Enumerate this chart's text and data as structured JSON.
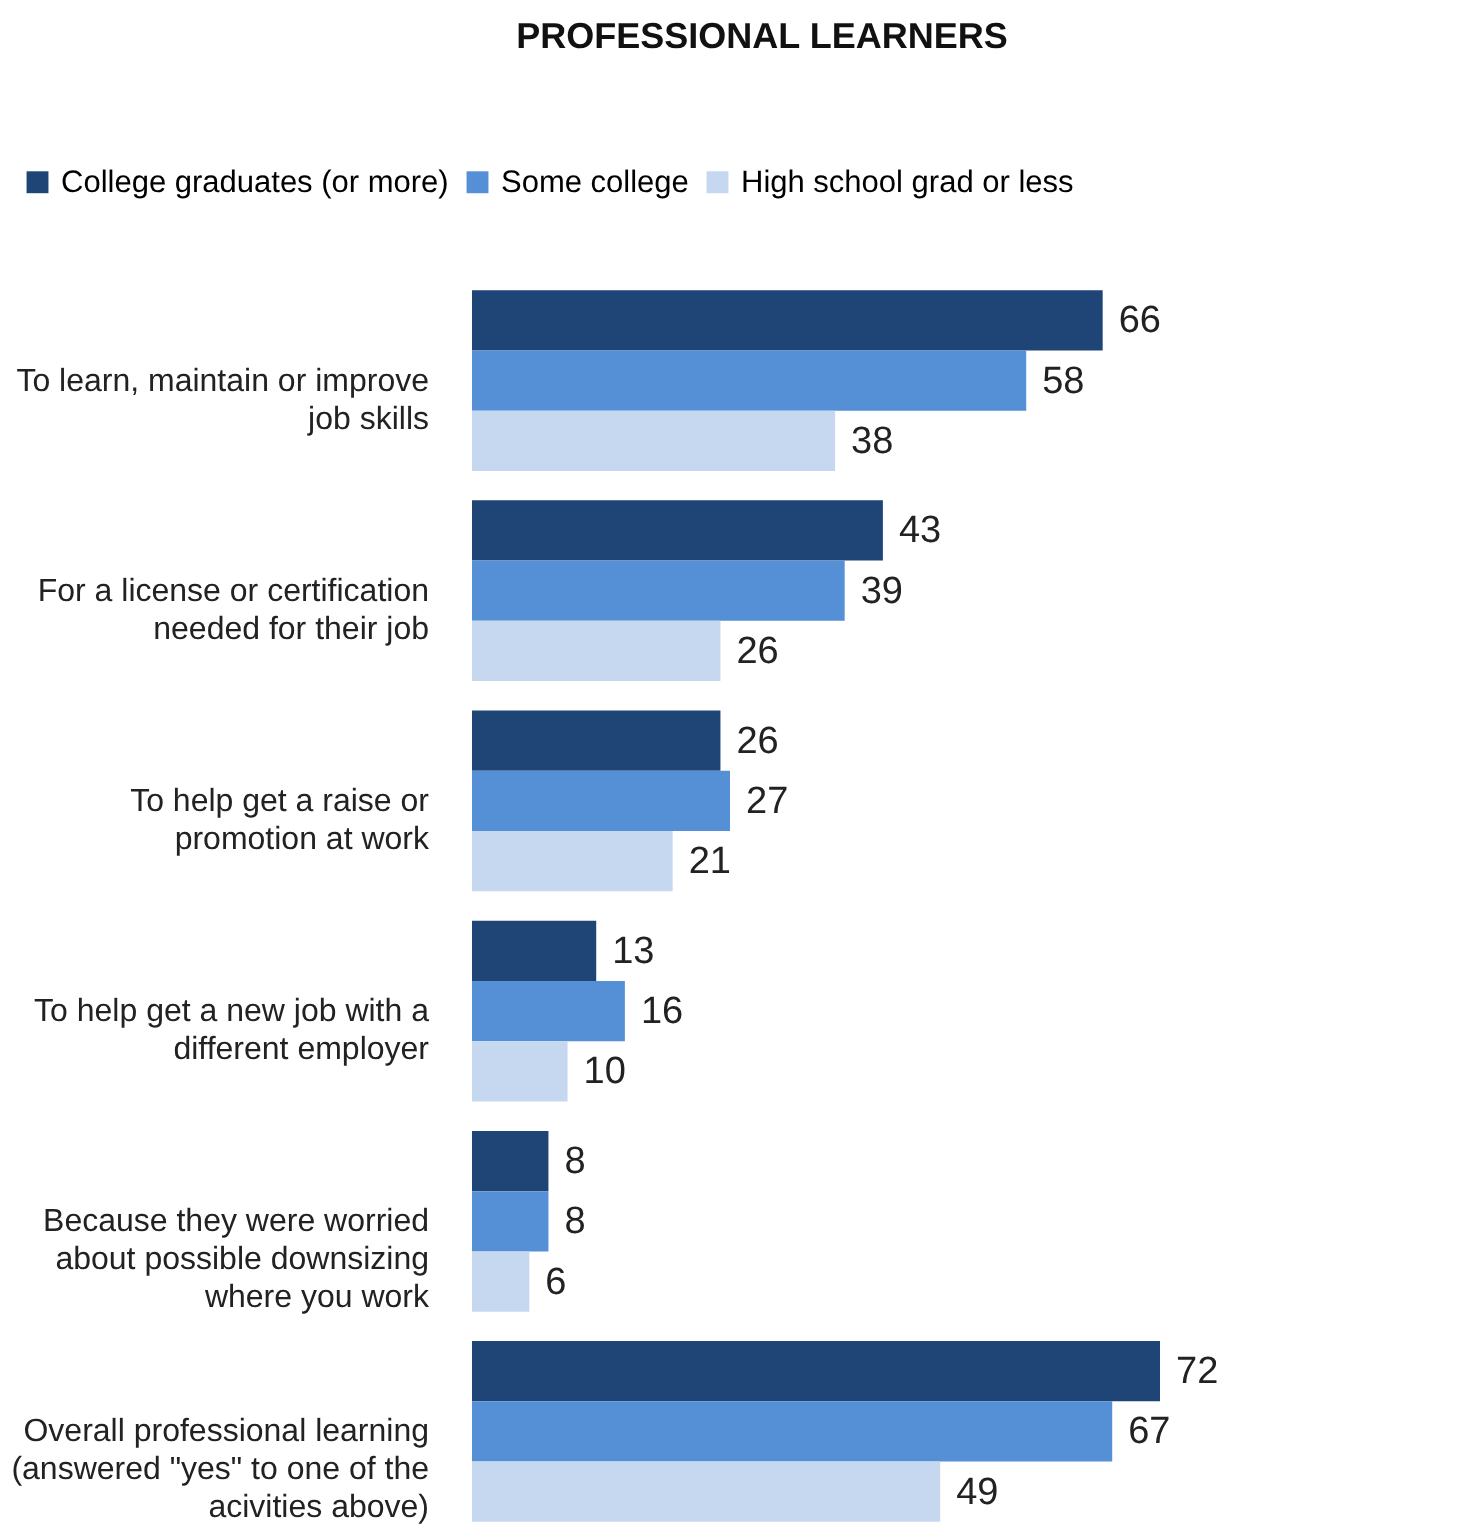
{
  "chart_data": {
    "type": "bar",
    "orientation": "horizontal",
    "title": "PROFESSIONAL LEARNERS",
    "categories": [
      "To learn, maintain or improve job skills",
      "For a license or certification needed for their job",
      "To help get a raise or promotion at work",
      "To help get a new job with a different employer",
      "Because they were worried about possible downsizing where you work",
      "Overall professional learning (answered \"yes\" to one of the acivities above)"
    ],
    "series": [
      {
        "name": "College graduates (or more)",
        "color": "#1f4577",
        "values": [
          66,
          43,
          26,
          13,
          8,
          72
        ]
      },
      {
        "name": "Some college",
        "color": "#5590d6",
        "values": [
          58,
          39,
          27,
          16,
          8,
          67
        ]
      },
      {
        "name": "High school grad or less",
        "color": "#c6d8f0",
        "values": [
          38,
          26,
          21,
          10,
          6,
          49
        ]
      }
    ],
    "data_labels": true,
    "legend": "top",
    "grid": false
  }
}
